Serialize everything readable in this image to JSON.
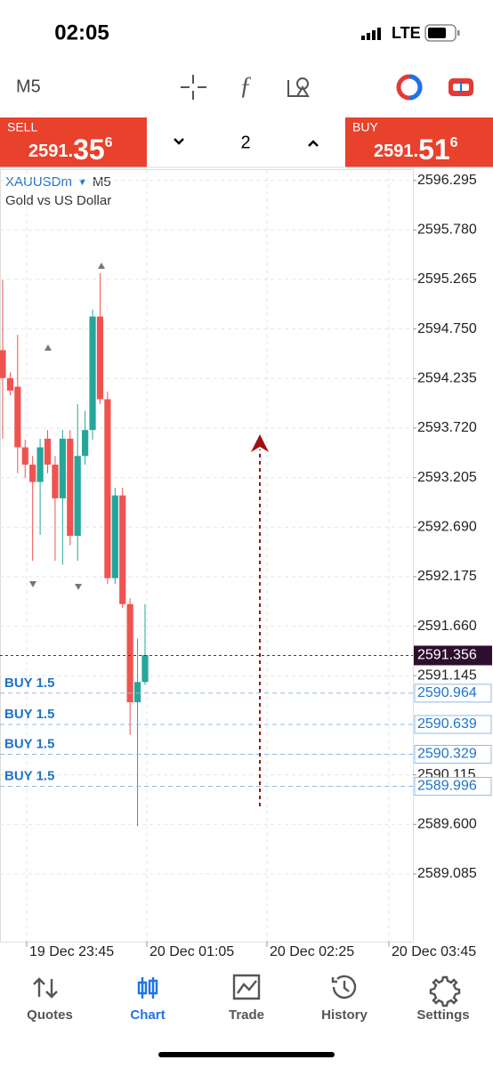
{
  "status_bar": {
    "time": "02:05",
    "network": "LTE"
  },
  "toolbar": {
    "timeframe": "M5"
  },
  "trade_panel": {
    "sell": {
      "label": "SELL",
      "price_prefix": "2591.",
      "price_big": "35",
      "price_sup": "6"
    },
    "volume": "2",
    "buy": {
      "label": "BUY",
      "price_prefix": "2591.",
      "price_big": "51",
      "price_sup": "6"
    }
  },
  "chart_data": {
    "type": "candlestick",
    "symbol": "XAUUSDm",
    "timeframe": "M5",
    "description": "Gold vs US Dollar",
    "up_color": "#26a69a",
    "down_color": "#ef5350",
    "grid": true,
    "candles": {
      "open": [
        2594.53,
        2594.24,
        2594.15,
        2593.52,
        2593.34,
        2593.16,
        2593.61,
        2593.34,
        2592.99,
        2593.61,
        2592.6,
        2593.43,
        2593.7,
        2594.88,
        2594.02,
        2592.16,
        2593.02,
        2591.89,
        2590.87,
        2591.08
      ],
      "high": [
        2595.26,
        2594.3,
        2594.69,
        2593.6,
        2593.43,
        2593.61,
        2593.7,
        2593.43,
        2593.7,
        2593.7,
        2593.97,
        2593.9,
        2594.95,
        2595.33,
        2594.1,
        2593.1,
        2593.1,
        2591.95,
        2591.53,
        2591.89
      ],
      "low": [
        2593.61,
        2594.06,
        2593.25,
        2593.2,
        2592.34,
        2592.61,
        2593.25,
        2592.34,
        2592.3,
        2592.5,
        2592.34,
        2593.34,
        2593.6,
        2593.97,
        2592.1,
        2592.1,
        2591.85,
        2590.53,
        2589.58,
        2591.05
      ],
      "close": [
        2594.24,
        2594.11,
        2593.52,
        2593.34,
        2593.16,
        2593.52,
        2593.34,
        2592.99,
        2593.61,
        2592.6,
        2593.43,
        2593.7,
        2594.88,
        2594.02,
        2592.16,
        2593.02,
        2591.89,
        2590.87,
        2591.08,
        2591.36
      ]
    },
    "ylim": [
      2588.705,
      2596.505
    ],
    "yticks": [
      2596.295,
      {
        "value": 2595.78,
        "label": "2595.780"
      },
      2595.265,
      {
        "value": 2594.75,
        "label": "2594.750"
      },
      2594.235,
      {
        "value": 2593.72,
        "label": "2593.720"
      },
      2593.205,
      {
        "value": 2592.69,
        "label": "2592.690"
      },
      2592.175,
      {
        "value": 2591.66,
        "label": "2591.660"
      },
      2591.145,
      {
        "value": 2590.115,
        "label": "2590.115"
      },
      {
        "value": 2589.6,
        "label": "2589.600"
      },
      2589.085
    ],
    "xticks": [
      "19 Dec 23:45",
      "20 Dec 01:05",
      "20 Dec 02:25",
      "20 Dec 03:45"
    ],
    "current_price": 2591.356,
    "orders": [
      {
        "name": "BUY 1.5",
        "price": 2590.964
      },
      {
        "name": "BUY 1.5",
        "price": 2590.639
      },
      {
        "name": "BUY 1.5",
        "price": 2590.329
      },
      {
        "name": "BUY 1.5",
        "price": 2589.996
      }
    ]
  },
  "tabs": [
    "Quotes",
    "Chart",
    "Trade",
    "History",
    "Settings"
  ]
}
